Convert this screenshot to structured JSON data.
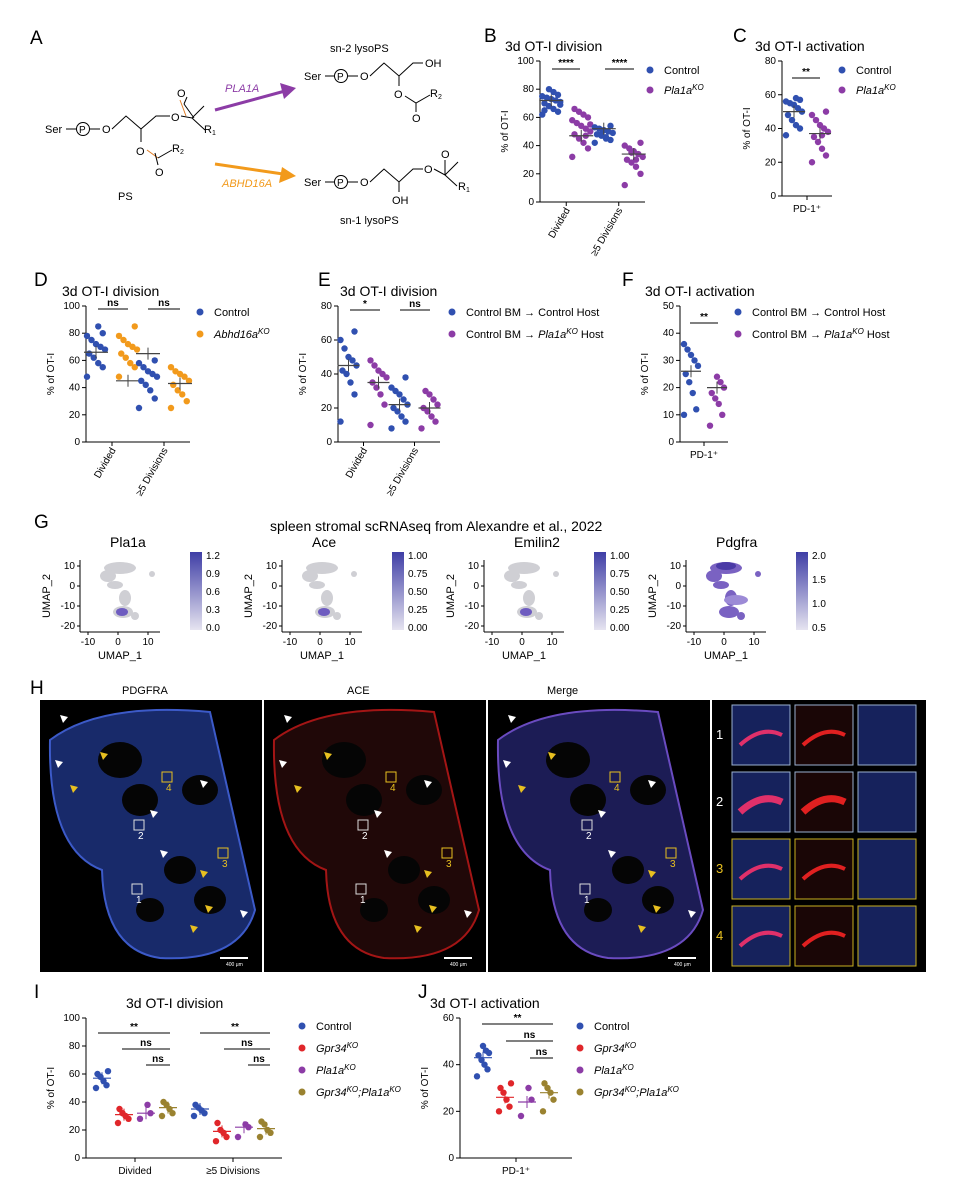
{
  "panel_letters": [
    "A",
    "B",
    "C",
    "D",
    "E",
    "F",
    "G",
    "H",
    "I",
    "J"
  ],
  "colors": {
    "control": "#3050b0",
    "pla1a": "#8c3ca6",
    "abhd16a": "#f29a1c",
    "gpr34": "#e0262a",
    "double": "#9a8230"
  },
  "A": {
    "ser": "Ser",
    "p": "P",
    "o": "O",
    "r1": "R",
    "r1sub": "1",
    "r2": "R",
    "r2sub": "2",
    "ps": "PS",
    "enz1": "PLA1A",
    "enz2": "ABHD16A",
    "prod1": "sn-2 lysoPS",
    "prod2": "sn-1 lysoPS",
    "oh": "OH"
  },
  "B": {
    "title": "3d OT-I division",
    "ylabel": "% of OT-I",
    "ticks": [
      "0",
      "20",
      "40",
      "60",
      "80",
      "100"
    ],
    "groups": [
      "Divided",
      "≥5 Divisions"
    ],
    "sig": [
      "****",
      "****"
    ],
    "legend": [
      "Control",
      "Pla1a"
    ],
    "ko": "KO"
  },
  "C": {
    "title": "3d OT-I activation",
    "ylabel": "% of OT-I",
    "ticks": [
      "0",
      "20",
      "40",
      "60",
      "80"
    ],
    "groups": [
      "PD-1⁺"
    ],
    "sig": [
      "**"
    ],
    "legend": [
      "Control",
      "Pla1a"
    ],
    "ko": "KO"
  },
  "D": {
    "title": "3d OT-I division",
    "ylabel": "% of OT-I",
    "ticks": [
      "0",
      "20",
      "40",
      "60",
      "80",
      "100"
    ],
    "groups": [
      "Divided",
      "≥5 Divisions"
    ],
    "sig": [
      "ns",
      "ns"
    ],
    "legend": [
      "Control",
      "Abhd16a"
    ],
    "ko": "KO"
  },
  "E": {
    "title": "3d OT-I division",
    "ylabel": "% of OT-I",
    "ticks": [
      "0",
      "20",
      "40",
      "60",
      "80"
    ],
    "groups": [
      "Divided",
      "≥5 Divisions"
    ],
    "sig": [
      "*",
      "ns"
    ],
    "legend": [
      "Control BM → Control Host",
      "Control BM → ",
      "Host"
    ],
    "legend_ko": "Pla1a",
    "ko": "KO"
  },
  "F": {
    "title": "3d OT-I activation",
    "ylabel": "% of OT-I",
    "ticks": [
      "0",
      "10",
      "20",
      "30",
      "40",
      "50"
    ],
    "groups": [
      "PD-1⁺"
    ],
    "sig": [
      "**"
    ],
    "legend": [
      "Control BM → Control Host",
      "Control BM → ",
      "Host"
    ],
    "legend_ko": "Pla1a",
    "ko": "KO"
  },
  "G": {
    "title": "spleen stromal scRNAseq from Alexandre et al., 2022",
    "xlabel": "UMAP_1",
    "ylabel": "UMAP_2",
    "xticks": [
      "-10",
      "0",
      "10"
    ],
    "yticks": [
      "10",
      "0",
      "-10",
      "-20"
    ],
    "umaps": [
      {
        "gene": "Pla1a",
        "scale": [
          "1.2",
          "0.9",
          "0.6",
          "0.3",
          "0.0"
        ]
      },
      {
        "gene": "Ace",
        "scale": [
          "1.00",
          "0.75",
          "0.50",
          "0.25",
          "0.00"
        ]
      },
      {
        "gene": "Emilin2",
        "scale": [
          "1.00",
          "0.75",
          "0.50",
          "0.25",
          "0.00"
        ]
      },
      {
        "gene": "Pdgfra",
        "scale": [
          "2.0",
          "1.5",
          "1.0",
          "0.5"
        ]
      }
    ]
  },
  "H": {
    "titles": [
      "PDGFRA",
      "ACE",
      "Merge"
    ],
    "regions": [
      "1",
      "2",
      "3",
      "4"
    ],
    "scalebar": "400 μm"
  },
  "I": {
    "title": "3d OT-I division",
    "ylabel": "% of OT-I",
    "ticks": [
      "0",
      "20",
      "40",
      "60",
      "80",
      "100"
    ],
    "groups": [
      "Divided",
      "≥5 Divisions"
    ],
    "sig": [
      "**",
      "ns",
      "ns",
      "**",
      "ns",
      "ns"
    ],
    "legend": [
      "Control",
      "Gpr34",
      "Pla1a",
      "Gpr34"
    ],
    "legend_tail": ";Pla1a",
    "ko": "KO"
  },
  "J": {
    "title": "3d OT-I activation",
    "ylabel": "% of OT-I",
    "ticks": [
      "0",
      "20",
      "40",
      "60"
    ],
    "groups": [
      "PD-1⁺"
    ],
    "sig": [
      "**",
      "ns",
      "ns"
    ],
    "legend": [
      "Control",
      "Gpr34",
      "Pla1a",
      "Gpr34"
    ],
    "legend_tail": ";Pla1a",
    "ko": "KO"
  },
  "chart_data": [
    {
      "panel": "B",
      "type": "scatter",
      "title": "3d OT-I division",
      "ylabel": "% of OT-I",
      "ylim": [
        0,
        100
      ],
      "categories": [
        "Divided",
        "≥5 Divisions"
      ],
      "series": [
        {
          "name": "Control",
          "values": [
            [
              62,
              64,
              66,
              68,
              70,
              71,
              72,
              73,
              74,
              75,
              76,
              78,
              80,
              65,
              69
            ],
            [
              42,
              44,
              46,
              47,
              48,
              49,
              50,
              51,
              52,
              53,
              54,
              45,
              48
            ]
          ]
        },
        {
          "name": "Pla1a KO",
          "values": [
            [
              32,
              38,
              42,
              45,
              48,
              50,
              52,
              54,
              56,
              58,
              60,
              62,
              64,
              66,
              55,
              47
            ],
            [
              12,
              20,
              25,
              28,
              30,
              32,
              34,
              36,
              38,
              40,
              42,
              30,
              35
            ]
          ]
        }
      ],
      "mean": [
        [
          72,
          52
        ],
        [
          47,
          34
        ]
      ]
    },
    {
      "panel": "C",
      "type": "scatter",
      "title": "3d OT-I activation",
      "ylabel": "% of OT-I",
      "ylim": [
        0,
        80
      ],
      "categories": [
        "PD-1⁺"
      ],
      "series": [
        {
          "name": "Control",
          "values": [
            [
              36,
              40,
              42,
              45,
              48,
              50,
              52,
              54,
              55,
              56,
              57,
              58
            ]
          ]
        },
        {
          "name": "Pla1a KO",
          "values": [
            [
              20,
              24,
              28,
              32,
              35,
              38,
              40,
              42,
              45,
              48,
              50,
              36
            ]
          ]
        }
      ],
      "mean": [
        [
          50
        ],
        [
          37
        ]
      ]
    },
    {
      "panel": "D",
      "type": "scatter",
      "title": "3d OT-I division",
      "ylabel": "% of OT-I",
      "ylim": [
        0,
        100
      ],
      "categories": [
        "Divided",
        "≥5 Divisions"
      ],
      "series": [
        {
          "name": "Control",
          "values": [
            [
              48,
              55,
              58,
              62,
              65,
              68,
              70,
              72,
              75,
              78,
              80,
              85
            ],
            [
              25,
              32,
              38,
              42,
              45,
              48,
              50,
              52,
              55,
              58,
              60
            ]
          ]
        },
        {
          "name": "Abhd16a KO",
          "values": [
            [
              48,
              55,
              58,
              62,
              65,
              68,
              70,
              72,
              75,
              78,
              85
            ],
            [
              25,
              30,
              35,
              38,
              42,
              45,
              48,
              50,
              52,
              55
            ]
          ]
        }
      ],
      "mean": [
        [
          66,
          65
        ],
        [
          45,
          43
        ]
      ]
    },
    {
      "panel": "E",
      "type": "scatter",
      "title": "3d OT-I division",
      "ylabel": "% of OT-I",
      "ylim": [
        0,
        80
      ],
      "categories": [
        "Divided",
        "≥5 Divisions"
      ],
      "series": [
        {
          "name": "Control BM → Control Host",
          "values": [
            [
              12,
              28,
              35,
              40,
              42,
              45,
              48,
              50,
              55,
              60,
              65
            ],
            [
              8,
              12,
              15,
              18,
              20,
              22,
              25,
              28,
              30,
              32,
              38
            ]
          ]
        },
        {
          "name": "Control BM → Pla1a KO Host",
          "values": [
            [
              10,
              22,
              28,
              32,
              35,
              38,
              40,
              42,
              45,
              48
            ],
            [
              8,
              12,
              15,
              18,
              20,
              22,
              25,
              28,
              30
            ]
          ]
        }
      ],
      "mean": [
        [
          45,
          22
        ],
        [
          35,
          20
        ]
      ]
    },
    {
      "panel": "F",
      "type": "scatter",
      "title": "3d OT-I activation",
      "ylabel": "% of OT-I",
      "ylim": [
        0,
        50
      ],
      "categories": [
        "PD-1⁺"
      ],
      "series": [
        {
          "name": "Control BM → Control Host",
          "values": [
            [
              10,
              12,
              18,
              22,
              25,
              28,
              30,
              32,
              34,
              36
            ]
          ]
        },
        {
          "name": "Control BM → Pla1a KO Host",
          "values": [
            [
              6,
              10,
              14,
              16,
              18,
              20,
              22,
              24
            ]
          ]
        }
      ],
      "mean": [
        [
          26
        ],
        [
          20
        ]
      ]
    },
    {
      "panel": "I",
      "type": "scatter",
      "title": "3d OT-I division",
      "ylabel": "% of OT-I",
      "ylim": [
        0,
        100
      ],
      "categories": [
        "Divided",
        "≥5 Divisions"
      ],
      "series": [
        {
          "name": "Control",
          "values": [
            [
              50,
              52,
              55,
              58,
              60,
              62
            ],
            [
              30,
              32,
              34,
              36,
              38
            ]
          ]
        },
        {
          "name": "Gpr34 KO",
          "values": [
            [
              25,
              28,
              30,
              32,
              35
            ],
            [
              12,
              15,
              18,
              20,
              25
            ]
          ]
        },
        {
          "name": "Pla1a KO",
          "values": [
            [
              28,
              32,
              38
            ],
            [
              15,
              22,
              24
            ]
          ]
        },
        {
          "name": "Gpr34 KO;Pla1a KO",
          "values": [
            [
              30,
              32,
              35,
              38,
              40
            ],
            [
              15,
              18,
              20,
              24,
              26
            ]
          ]
        }
      ],
      "mean": [
        [
          57,
          35
        ],
        [
          31,
          19
        ],
        [
          32,
          22
        ],
        [
          36,
          21
        ]
      ]
    },
    {
      "panel": "J",
      "type": "scatter",
      "title": "3d OT-I activation",
      "ylabel": "% of OT-I",
      "ylim": [
        0,
        60
      ],
      "categories": [
        "PD-1⁺"
      ],
      "series": [
        {
          "name": "Control",
          "values": [
            [
              35,
              38,
              40,
              42,
              44,
              45,
              46,
              48
            ]
          ]
        },
        {
          "name": "Gpr34 KO",
          "values": [
            [
              20,
              22,
              25,
              28,
              30,
              32
            ]
          ]
        },
        {
          "name": "Pla1a KO",
          "values": [
            [
              18,
              25,
              30
            ]
          ]
        },
        {
          "name": "Gpr34 KO;Pla1a KO",
          "values": [
            [
              20,
              25,
              28,
              30,
              32
            ]
          ]
        }
      ],
      "mean": [
        [
          43
        ],
        [
          26
        ],
        [
          24
        ],
        [
          28
        ]
      ]
    }
  ]
}
